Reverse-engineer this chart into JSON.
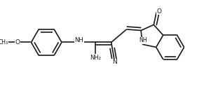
{
  "bg_color": "#ffffff",
  "line_color": "#1a1a1a",
  "text_color": "#1a1a1a",
  "line_width": 1.2,
  "dbo": 0.013,
  "figsize": [
    3.11,
    1.3
  ],
  "dpi": 100,
  "xlim": [
    0.0,
    1.0
  ],
  "ylim": [
    0.0,
    0.42
  ]
}
